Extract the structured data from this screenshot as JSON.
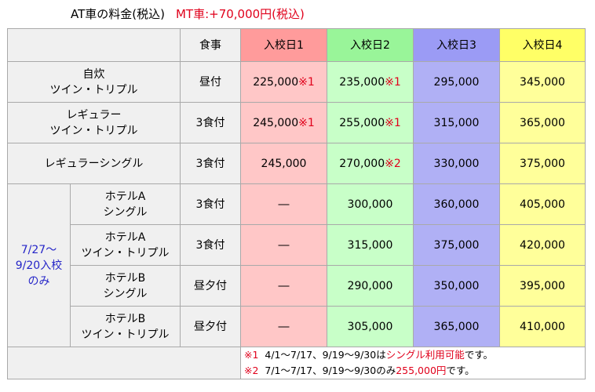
{
  "title": {
    "at_text": "AT車の料金(税込)",
    "mt_text": "MT車:+70,000円(税込)"
  },
  "header": {
    "meal": "食事",
    "col1": "入校日1",
    "col2": "入校日2",
    "col3": "入校日3",
    "col4": "入校日4"
  },
  "period_label": {
    "line1": "7/27～",
    "line2": "9/20入校",
    "line3": "のみ"
  },
  "rows": [
    {
      "name1": "自炊",
      "name2": "ツイン・トリプル",
      "meal": "昼付",
      "v1": "225,000",
      "m1": "※1",
      "v2": "235,000",
      "m2": "※1",
      "v3": "295,000",
      "v4": "345,000"
    },
    {
      "name1": "レギュラー",
      "name2": "ツイン・トリプル",
      "meal": "3食付",
      "v1": "245,000",
      "m1": "※1",
      "v2": "255,000",
      "m2": "※1",
      "v3": "315,000",
      "v4": "365,000"
    },
    {
      "name1": "レギュラーシングル",
      "meal": "3食付",
      "v1": "245,000",
      "v2": "270,000",
      "m2": "※2",
      "v3": "330,000",
      "v4": "375,000"
    },
    {
      "name1": "ホテルA",
      "name2": "シングル",
      "meal": "3食付",
      "v1": "―",
      "v2": "300,000",
      "v3": "360,000",
      "v4": "405,000"
    },
    {
      "name1": "ホテルA",
      "name2": "ツイン・トリプル",
      "meal": "3食付",
      "v1": "―",
      "v2": "315,000",
      "v3": "375,000",
      "v4": "420,000"
    },
    {
      "name1": "ホテルB",
      "name2": "シングル",
      "meal": "昼夕付",
      "v1": "―",
      "v2": "290,000",
      "v3": "350,000",
      "v4": "395,000"
    },
    {
      "name1": "ホテルB",
      "name2": "ツイン・トリプル",
      "meal": "昼夕付",
      "v1": "―",
      "v2": "305,000",
      "v3": "365,000",
      "v4": "410,000"
    }
  ],
  "notes": {
    "n1_mark": "※1",
    "n1_text": "4/1～7/17、9/19～9/30は",
    "n1_red": "シングル利用可能",
    "n1_end": "です。",
    "n2_mark": "※2",
    "n2_text": "7/1～7/17、9/19～9/30のみ",
    "n2_red": "255,000円",
    "n2_end": "です。"
  }
}
